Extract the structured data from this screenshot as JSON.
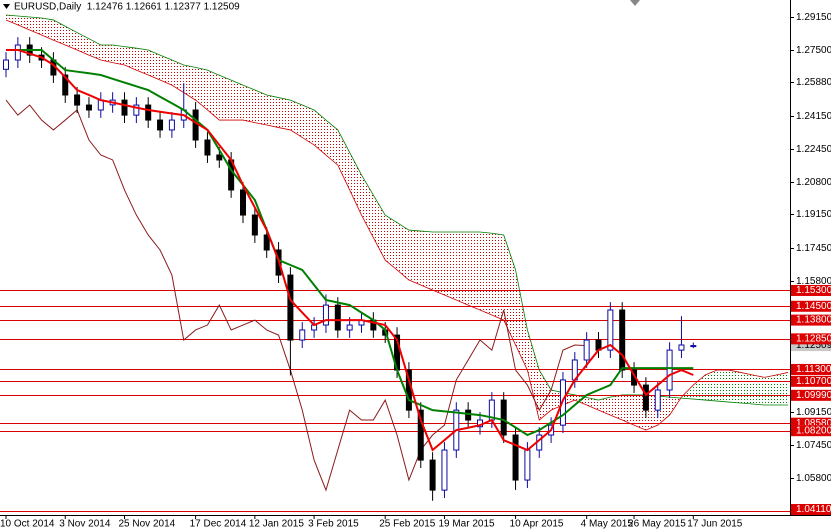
{
  "chart_data": {
    "type": "candlestick",
    "title": "EURUSD,Daily  1.12476 1.12661 1.12377 1.12509",
    "categories": [
      "10 Oct 2014",
      null,
      null,
      null,
      null,
      "3 Nov 2014",
      null,
      null,
      null,
      null,
      "25 Nov 2014",
      null,
      null,
      null,
      null,
      null,
      "17 Dec 2014",
      null,
      null,
      null,
      null,
      "12 Jan 2015",
      null,
      null,
      null,
      null,
      "3 Feb 2015",
      null,
      null,
      null,
      null,
      null,
      "25 Feb 2015",
      null,
      null,
      null,
      null,
      "19 Mar 2015",
      null,
      null,
      null,
      null,
      null,
      "10 Apr 2015",
      null,
      null,
      null,
      null,
      null,
      "4 May 2015",
      null,
      null,
      null,
      "26 May 2015",
      null,
      null,
      null,
      null,
      "17 Jun 2015",
      null,
      null,
      null,
      null,
      null,
      null,
      null,
      null
    ],
    "open": [
      1.265,
      1.2697,
      1.2773,
      1.2722,
      1.2697,
      1.2621,
      1.252,
      1.2469,
      1.2444,
      1.247,
      1.2494,
      1.2418,
      1.2469,
      1.2393,
      1.2343,
      1.2393,
      1.2444,
      1.2292,
      1.2216,
      1.2191,
      1.2039,
      1.1912,
      1.1811,
      1.1735,
      1.1608,
      1.1279,
      1.133,
      1.1355,
      1.1456,
      1.133,
      1.1355,
      1.138,
      1.133,
      1.1304,
      1.1127,
      1.0924,
      1.0671,
      1.0519,
      1.0722,
      1.0924,
      1.084,
      1.0874,
      1.0975,
      1.0798,
      1.057,
      1.0722,
      1.0798,
      1.0848,
      1.1077,
      1.1178,
      1.1279,
      1.1228,
      1.1431,
      1.1127,
      1.1051,
      1.0924,
      1.1026,
      1.1228,
      1.12476,
      null,
      null,
      null,
      null,
      null,
      null,
      null,
      null
    ],
    "high": [
      1.2737,
      1.2813,
      1.2813,
      1.2762,
      1.2737,
      1.2661,
      1.256,
      1.2509,
      1.2534,
      1.2534,
      1.2534,
      1.2509,
      1.2509,
      1.2433,
      1.2433,
      1.258,
      1.2484,
      1.2332,
      1.2256,
      1.2231,
      1.2079,
      1.1952,
      1.1851,
      1.1775,
      1.1648,
      1.137,
      1.1395,
      1.151,
      1.1496,
      1.1395,
      1.142,
      1.142,
      1.137,
      1.1344,
      1.1167,
      1.0964,
      1.0711,
      1.0762,
      1.0964,
      1.0964,
      1.0914,
      1.1015,
      1.1015,
      1.0838,
      1.0762,
      1.0838,
      1.0888,
      1.1117,
      1.1218,
      1.1319,
      1.1319,
      1.1471,
      1.1471,
      1.1167,
      1.1091,
      1.1066,
      1.1268,
      1.14,
      1.12661,
      null,
      null,
      null,
      null,
      null,
      null,
      null,
      null
    ],
    "low": [
      1.261,
      1.2657,
      1.2682,
      1.2657,
      1.2581,
      1.248,
      1.2429,
      1.2404,
      1.2404,
      1.243,
      1.2378,
      1.2378,
      1.2353,
      1.2303,
      1.2303,
      1.2353,
      1.2252,
      1.2176,
      1.2151,
      1.1999,
      1.1872,
      1.1771,
      1.1695,
      1.1568,
      1.11,
      1.1239,
      1.129,
      1.1315,
      1.129,
      1.129,
      1.1315,
      1.129,
      1.1264,
      1.1087,
      1.0884,
      1.0631,
      1.0465,
      1.0479,
      1.0682,
      1.0834,
      1.08,
      1.0834,
      1.0758,
      1.052,
      1.053,
      1.0682,
      1.0758,
      1.0808,
      1.1037,
      1.1138,
      1.1188,
      1.1188,
      1.1087,
      1.1011,
      1.0884,
      1.0884,
      1.0986,
      1.1188,
      1.12377,
      null,
      null,
      null,
      null,
      null,
      null,
      null,
      null
    ],
    "close": [
      1.2697,
      1.2773,
      1.2722,
      1.2697,
      1.2621,
      1.252,
      1.2469,
      1.2444,
      1.2494,
      1.2494,
      1.2418,
      1.2469,
      1.2393,
      1.2343,
      1.2393,
      1.2444,
      1.2292,
      1.2216,
      1.2191,
      1.2039,
      1.1912,
      1.1811,
      1.1735,
      1.1608,
      1.1279,
      1.133,
      1.1355,
      1.1456,
      1.133,
      1.1355,
      1.138,
      1.133,
      1.1304,
      1.1127,
      1.0924,
      1.0671,
      1.0519,
      1.0722,
      1.0924,
      1.0874,
      1.0874,
      1.0975,
      1.0798,
      1.057,
      1.0722,
      1.0798,
      1.0848,
      1.1077,
      1.1178,
      1.1279,
      1.1228,
      1.1431,
      1.1127,
      1.1051,
      1.0924,
      1.1026,
      1.1228,
      1.1254,
      1.12509,
      null,
      null,
      null,
      null,
      null,
      null,
      null,
      null
    ],
    "candle_colors": {
      "up": "#0a0aa0",
      "down": "#000000"
    },
    "series": [
      {
        "color": "#8b1a1a",
        "line_width": "thin",
        "values": [
          1.2494,
          1.2418,
          1.2469,
          1.2393,
          1.2343,
          1.2393,
          1.2444,
          1.2292,
          1.2216,
          1.2191,
          1.2039,
          1.1912,
          1.1811,
          1.1735,
          1.1608,
          1.1279,
          1.133,
          1.1355,
          1.1456,
          1.133,
          1.1355,
          1.138,
          1.133,
          1.1304,
          1.1127,
          1.0924,
          1.0671,
          1.0519,
          1.0722,
          1.0924,
          1.0874,
          1.0874,
          1.0975,
          1.0798,
          1.057,
          1.0722,
          1.0798,
          1.0848,
          1.1077,
          1.1178,
          1.1279,
          1.1228,
          1.1431,
          1.1127,
          1.1051,
          1.0924,
          1.1026,
          1.1228,
          1.1254,
          1.1251,
          null,
          null,
          null,
          null,
          null,
          null,
          null,
          null,
          null,
          null,
          null,
          null,
          null,
          null,
          null,
          null,
          null
        ]
      },
      {
        "color": "#008000",
        "line_width": "thick",
        "values": [
          1.2748,
          1.2748,
          1.2748,
          1.2748,
          1.2697,
          1.2646,
          1.2638,
          1.263,
          1.2621,
          1.2602,
          1.2583,
          1.2564,
          1.2545,
          1.2511,
          1.2478,
          1.2444,
          1.2394,
          1.2343,
          1.2242,
          1.214,
          1.2064,
          1.1988,
          1.1836,
          1.1684,
          1.1659,
          1.1634,
          1.1558,
          1.1482,
          1.1469,
          1.1456,
          1.1418,
          1.138,
          1.133,
          1.1127,
          1.0975,
          1.095,
          1.0924,
          1.0918,
          1.0912,
          1.0905,
          1.0899,
          1.0887,
          1.0874,
          1.0836,
          1.0798,
          1.0823,
          1.0861,
          1.0899,
          1.095,
          1.1001,
          1.1026,
          1.1051,
          1.1137,
          1.1137,
          1.1137,
          1.1137,
          1.1137,
          1.1137,
          1.1137,
          null,
          null,
          null,
          null,
          null,
          null,
          null,
          null
        ]
      },
      {
        "color": "#ee0000",
        "line_width": "thick",
        "values": [
          1.2748,
          1.2748,
          1.2729,
          1.271,
          1.2672,
          1.261,
          1.2545,
          1.252,
          1.2494,
          1.2482,
          1.2469,
          1.2456,
          1.2444,
          1.2435,
          1.2426,
          1.2418,
          1.238,
          1.2343,
          1.2267,
          1.2191,
          1.2064,
          1.195,
          1.1836,
          1.1684,
          1.1482,
          1.1418,
          1.1355,
          1.138,
          1.138,
          1.138,
          1.138,
          1.1368,
          1.1355,
          1.1279,
          1.1077,
          1.0874,
          1.0722,
          1.0772,
          1.0823,
          1.0835,
          1.0848,
          1.0874,
          1.0772,
          1.0747,
          1.0722,
          1.0772,
          1.0823,
          1.0975,
          1.1077,
          1.1153,
          1.1228,
          1.1254,
          1.1203,
          1.1102,
          1.1001,
          1.1051,
          1.1102,
          1.1127,
          1.1102,
          null,
          null,
          null,
          null,
          null,
          null,
          null,
          null
        ]
      }
    ],
    "cloud": {
      "bear_color": "#cc0000",
      "bull_color": "#008000",
      "span_a": [
        1.29,
        1.2875,
        1.2849,
        1.2824,
        1.2798,
        1.2773,
        1.2748,
        1.2722,
        1.2697,
        1.2684,
        1.2672,
        1.2646,
        1.2621,
        1.2596,
        1.257,
        1.2532,
        1.2494,
        1.2444,
        1.2393,
        1.2393,
        1.2393,
        1.238,
        1.2368,
        1.2355,
        1.2343,
        1.2305,
        1.2267,
        1.2216,
        1.2165,
        1.2039,
        1.1912,
        1.1798,
        1.1684,
        1.1634,
        1.1583,
        1.1558,
        1.1532,
        1.1507,
        1.1482,
        1.1456,
        1.1431,
        1.1406,
        1.138,
        1.1254,
        1.1127,
        1.0874,
        1.0924,
        1.095,
        1.0975,
        1.095,
        1.0924,
        1.0899,
        1.0874,
        1.0848,
        1.0823,
        1.0848,
        1.0899,
        1.099,
        1.1051,
        1.1102,
        1.1127,
        1.1127,
        1.1115,
        1.1102,
        1.109,
        1.1102,
        1.1115
      ],
      "span_b": [
        1.2925,
        1.292,
        1.2915,
        1.291,
        1.29,
        1.2868,
        1.2836,
        1.2805,
        1.2773,
        1.2773,
        1.2765,
        1.2757,
        1.2748,
        1.2722,
        1.2697,
        1.2672,
        1.266,
        1.2646,
        1.262,
        1.2595,
        1.257,
        1.2545,
        1.252,
        1.2507,
        1.2494,
        1.2469,
        1.2444,
        1.2393,
        1.2343,
        1.2229,
        1.2115,
        1.2013,
        1.1912,
        1.1874,
        1.1836,
        1.1831,
        1.1826,
        1.1826,
        1.1826,
        1.1826,
        1.1826,
        1.182,
        1.1811,
        1.1634,
        1.133,
        1.1127,
        1.1026,
        1.1013,
        1.1001,
        1.0988,
        1.0975,
        1.099,
        1.1001,
        1.1001,
        1.1001,
        1.0995,
        1.099,
        1.0985,
        1.098,
        1.0975,
        1.097,
        1.0965,
        1.096,
        1.0955,
        1.095,
        1.095,
        1.095
      ]
    },
    "ylim": [
      1.0393,
      1.3001
    ],
    "yticks": [
      {
        "value": 1.2915,
        "label": "1.29150"
      },
      {
        "value": 1.275,
        "label": "1.27500"
      },
      {
        "value": 1.2588,
        "label": "1.25880"
      },
      {
        "value": 1.2415,
        "label": "1.24150"
      },
      {
        "value": 1.2245,
        "label": "1.22450"
      },
      {
        "value": 1.208,
        "label": "1.20800"
      },
      {
        "value": 1.1915,
        "label": "1.19150"
      },
      {
        "value": 1.1745,
        "label": "1.17450"
      },
      {
        "value": 1.158,
        "label": "1.15800"
      },
      {
        "value": 1.0915,
        "label": "1.09150"
      },
      {
        "value": 1.0745,
        "label": "1.07450"
      },
      {
        "value": 1.058,
        "label": "1.05800"
      }
    ],
    "last_price": {
      "value": 1.12509,
      "label": "1.12509"
    },
    "levels": {
      "color": "#dd0000",
      "values": [
        {
          "value": 1.153,
          "label": "1.15300"
        },
        {
          "value": 1.145,
          "label": "1.14500"
        },
        {
          "value": 1.138,
          "label": "1.13800"
        },
        {
          "value": 1.1285,
          "label": "1.12850"
        },
        {
          "value": 1.113,
          "label": "1.11300"
        },
        {
          "value": 1.107,
          "label": "1.10700"
        },
        {
          "value": 1.0999,
          "label": "1.09990"
        },
        {
          "value": 1.0858,
          "label": "1.08580"
        },
        {
          "value": 1.082,
          "label": "1.08200"
        },
        {
          "value": 1.0411,
          "label": "1.04110"
        }
      ]
    }
  }
}
